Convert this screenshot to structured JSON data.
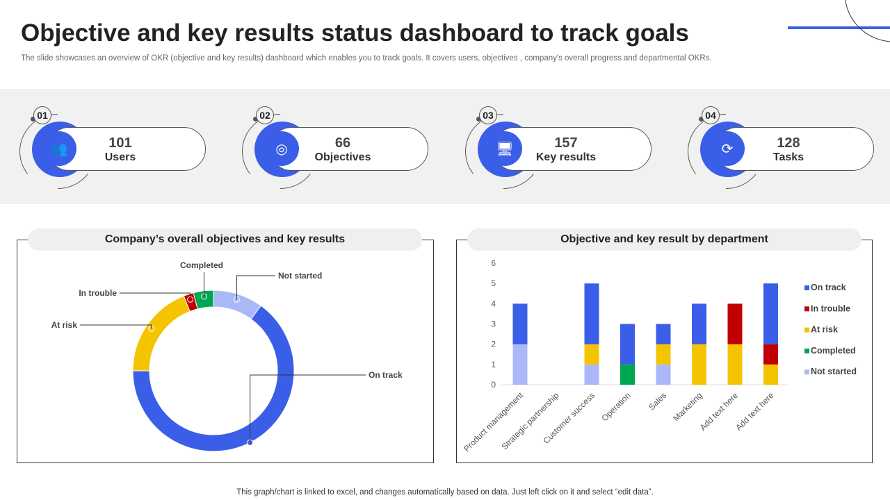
{
  "title": "Objective and key results status dashboard to track goals",
  "subtitle": "The slide showcases an overview of OKR (objective and key results) dashboard which enables you to track goals. It covers users, objectives , company's overall progress and departmental OKRs.",
  "stats": [
    {
      "num": "01",
      "value": "101",
      "label": "Users",
      "icon": "users-sync-icon"
    },
    {
      "num": "02",
      "value": "66",
      "label": "Objectives",
      "icon": "target-chart-icon"
    },
    {
      "num": "03",
      "value": "157",
      "label": "Key results",
      "icon": "monitor-check-icon"
    },
    {
      "num": "04",
      "value": "128",
      "label": "Tasks",
      "icon": "task-cycle-icon"
    }
  ],
  "colors": {
    "On track": "#3b5ee8",
    "In trouble": "#c00000",
    "At risk": "#f5c400",
    "Completed": "#00a650",
    "Not started": "#aab8f8"
  },
  "chart_data": [
    {
      "type": "pie",
      "title": "Company’s overall objectives and key results",
      "donut": true,
      "labels": [
        "Not started",
        "On track",
        "At risk",
        "In trouble",
        "Completed"
      ],
      "values": [
        10,
        65,
        19,
        2,
        4
      ]
    },
    {
      "type": "bar",
      "stacked": true,
      "title": "Objective and key result by department",
      "categories": [
        "Product management",
        "Strategic partnership",
        "Customer success",
        "Operation",
        "Sales",
        "Marketing",
        "Add text here",
        "Add text here"
      ],
      "ylim": [
        0,
        6
      ],
      "yticks": [
        0,
        1,
        2,
        3,
        4,
        5,
        6
      ],
      "legend": "right",
      "series": [
        {
          "name": "Not started",
          "values": [
            2,
            0,
            1,
            0,
            1,
            0,
            0,
            0
          ]
        },
        {
          "name": "Completed",
          "values": [
            0,
            0,
            0,
            1,
            0,
            0,
            0,
            0
          ]
        },
        {
          "name": "At risk",
          "values": [
            0,
            0,
            1,
            0,
            1,
            2,
            2,
            1
          ]
        },
        {
          "name": "In trouble",
          "values": [
            0,
            0,
            0,
            0,
            0,
            0,
            2,
            1
          ]
        },
        {
          "name": "On track",
          "values": [
            2,
            0,
            3,
            2,
            1,
            2,
            0,
            3
          ]
        }
      ]
    }
  ],
  "footer": "This graph/chart is linked to excel,  and changes automatically based on data. Just left click on it and select “edit data”."
}
